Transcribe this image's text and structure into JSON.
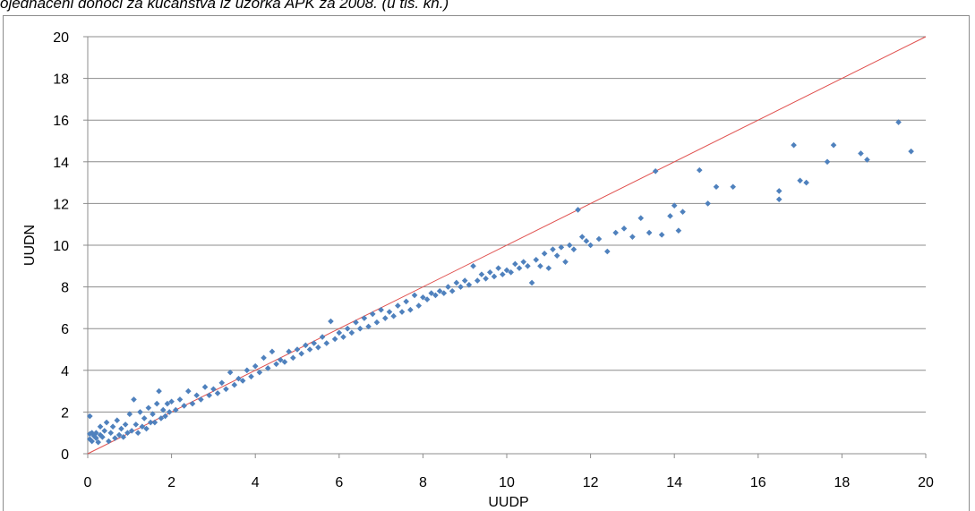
{
  "caption": "ojednačeni dohoci za kućanstva iz uzorka APK za 2008. (u tis. kn.)",
  "chart_data": {
    "type": "scatter",
    "xlabel": "UUDP",
    "ylabel": "UUDN",
    "xlim": [
      0,
      20
    ],
    "ylim": [
      0,
      20
    ],
    "xticks": [
      "0",
      "2",
      "4",
      "6",
      "8",
      "10",
      "12",
      "14",
      "16",
      "18",
      "20"
    ],
    "yticks": [
      "0",
      "2",
      "4",
      "6",
      "8",
      "10",
      "12",
      "14",
      "16",
      "18",
      "20"
    ],
    "grid": "horizontal",
    "legend": "none",
    "marker_color": "#4f81bd",
    "reference_line": {
      "from": [
        0,
        0
      ],
      "to": [
        20,
        20
      ],
      "color": "#e0504e"
    },
    "series": [
      {
        "points": [
          [
            0.05,
            1.8
          ],
          [
            0.05,
            0.95
          ],
          [
            0.05,
            0.7
          ],
          [
            0.1,
            0.6
          ],
          [
            0.1,
            1.0
          ],
          [
            0.15,
            0.85
          ],
          [
            0.2,
            0.75
          ],
          [
            0.2,
            1.0
          ],
          [
            0.25,
            0.55
          ],
          [
            0.3,
            1.3
          ],
          [
            0.3,
            0.9
          ],
          [
            0.35,
            0.8
          ],
          [
            0.4,
            1.1
          ],
          [
            0.45,
            1.5
          ],
          [
            0.5,
            0.6
          ],
          [
            0.55,
            1.0
          ],
          [
            0.6,
            1.3
          ],
          [
            0.65,
            0.75
          ],
          [
            0.7,
            1.6
          ],
          [
            0.75,
            0.9
          ],
          [
            0.8,
            1.2
          ],
          [
            0.85,
            0.8
          ],
          [
            0.9,
            1.4
          ],
          [
            0.95,
            1.0
          ],
          [
            1.0,
            1.9
          ],
          [
            1.05,
            1.1
          ],
          [
            1.1,
            2.6
          ],
          [
            1.15,
            1.4
          ],
          [
            1.2,
            1.0
          ],
          [
            1.25,
            2.0
          ],
          [
            1.3,
            1.3
          ],
          [
            1.35,
            1.7
          ],
          [
            1.4,
            1.2
          ],
          [
            1.45,
            2.2
          ],
          [
            1.5,
            1.5
          ],
          [
            1.55,
            1.9
          ],
          [
            1.6,
            1.5
          ],
          [
            1.65,
            2.4
          ],
          [
            1.7,
            3.0
          ],
          [
            1.75,
            1.7
          ],
          [
            1.8,
            2.1
          ],
          [
            1.85,
            1.8
          ],
          [
            1.9,
            2.4
          ],
          [
            1.95,
            2.0
          ],
          [
            2.0,
            2.5
          ],
          [
            2.1,
            2.1
          ],
          [
            2.2,
            2.6
          ],
          [
            2.3,
            2.3
          ],
          [
            2.4,
            3.0
          ],
          [
            2.5,
            2.4
          ],
          [
            2.6,
            2.8
          ],
          [
            2.7,
            2.6
          ],
          [
            2.8,
            3.2
          ],
          [
            2.9,
            2.8
          ],
          [
            3.0,
            3.1
          ],
          [
            3.1,
            2.9
          ],
          [
            3.2,
            3.4
          ],
          [
            3.3,
            3.1
          ],
          [
            3.4,
            3.9
          ],
          [
            3.5,
            3.3
          ],
          [
            3.6,
            3.6
          ],
          [
            3.7,
            3.5
          ],
          [
            3.8,
            4.0
          ],
          [
            3.9,
            3.7
          ],
          [
            4.0,
            4.2
          ],
          [
            4.1,
            3.9
          ],
          [
            4.2,
            4.6
          ],
          [
            4.3,
            4.1
          ],
          [
            4.4,
            4.9
          ],
          [
            4.5,
            4.3
          ],
          [
            4.6,
            4.5
          ],
          [
            4.7,
            4.4
          ],
          [
            4.8,
            4.9
          ],
          [
            4.9,
            4.6
          ],
          [
            5.0,
            5.0
          ],
          [
            5.1,
            4.8
          ],
          [
            5.2,
            5.2
          ],
          [
            5.3,
            5.0
          ],
          [
            5.4,
            5.3
          ],
          [
            5.5,
            5.1
          ],
          [
            5.6,
            5.6
          ],
          [
            5.7,
            5.3
          ],
          [
            5.8,
            6.35
          ],
          [
            5.9,
            5.5
          ],
          [
            6.0,
            5.8
          ],
          [
            6.1,
            5.6
          ],
          [
            6.2,
            6.0
          ],
          [
            6.3,
            5.8
          ],
          [
            6.4,
            6.3
          ],
          [
            6.5,
            6.0
          ],
          [
            6.6,
            6.5
          ],
          [
            6.7,
            6.1
          ],
          [
            6.8,
            6.7
          ],
          [
            6.9,
            6.3
          ],
          [
            7.0,
            6.9
          ],
          [
            7.1,
            6.5
          ],
          [
            7.2,
            6.8
          ],
          [
            7.3,
            6.6
          ],
          [
            7.4,
            7.1
          ],
          [
            7.5,
            6.8
          ],
          [
            7.6,
            7.3
          ],
          [
            7.7,
            6.9
          ],
          [
            7.8,
            7.6
          ],
          [
            7.9,
            7.1
          ],
          [
            8.0,
            7.5
          ],
          [
            8.1,
            7.4
          ],
          [
            8.2,
            7.7
          ],
          [
            8.3,
            7.6
          ],
          [
            8.4,
            7.8
          ],
          [
            8.5,
            7.7
          ],
          [
            8.6,
            8.0
          ],
          [
            8.7,
            7.8
          ],
          [
            8.8,
            8.2
          ],
          [
            8.9,
            8.0
          ],
          [
            9.0,
            8.3
          ],
          [
            9.1,
            8.1
          ],
          [
            9.2,
            9.0
          ],
          [
            9.3,
            8.3
          ],
          [
            9.4,
            8.6
          ],
          [
            9.5,
            8.4
          ],
          [
            9.6,
            8.7
          ],
          [
            9.7,
            8.5
          ],
          [
            9.8,
            8.9
          ],
          [
            9.9,
            8.6
          ],
          [
            10.0,
            8.8
          ],
          [
            10.1,
            8.7
          ],
          [
            10.2,
            9.1
          ],
          [
            10.3,
            8.9
          ],
          [
            10.4,
            9.2
          ],
          [
            10.5,
            9.0
          ],
          [
            10.6,
            8.2
          ],
          [
            10.7,
            9.3
          ],
          [
            10.8,
            9.0
          ],
          [
            10.9,
            9.6
          ],
          [
            11.0,
            8.9
          ],
          [
            11.1,
            9.8
          ],
          [
            11.2,
            9.5
          ],
          [
            11.3,
            9.9
          ],
          [
            11.4,
            9.2
          ],
          [
            11.5,
            10.0
          ],
          [
            11.6,
            9.8
          ],
          [
            11.7,
            11.7
          ],
          [
            11.8,
            10.4
          ],
          [
            11.9,
            10.2
          ],
          [
            12.0,
            10.0
          ],
          [
            12.2,
            10.3
          ],
          [
            12.4,
            9.7
          ],
          [
            12.6,
            10.6
          ],
          [
            12.8,
            10.8
          ],
          [
            13.0,
            10.4
          ],
          [
            13.2,
            11.3
          ],
          [
            13.4,
            10.6
          ],
          [
            13.55,
            13.55
          ],
          [
            13.7,
            10.5
          ],
          [
            13.9,
            11.4
          ],
          [
            14.0,
            11.9
          ],
          [
            14.1,
            10.7
          ],
          [
            14.2,
            11.6
          ],
          [
            14.6,
            13.6
          ],
          [
            14.8,
            12.0
          ],
          [
            15.0,
            12.8
          ],
          [
            15.4,
            12.8
          ],
          [
            16.5,
            12.6
          ],
          [
            16.5,
            12.2
          ],
          [
            16.85,
            14.8
          ],
          [
            17.0,
            13.1
          ],
          [
            17.15,
            13.0
          ],
          [
            17.65,
            14.0
          ],
          [
            17.8,
            14.8
          ],
          [
            18.45,
            14.4
          ],
          [
            18.6,
            14.1
          ],
          [
            19.35,
            15.9
          ],
          [
            19.65,
            14.5
          ]
        ]
      }
    ]
  }
}
